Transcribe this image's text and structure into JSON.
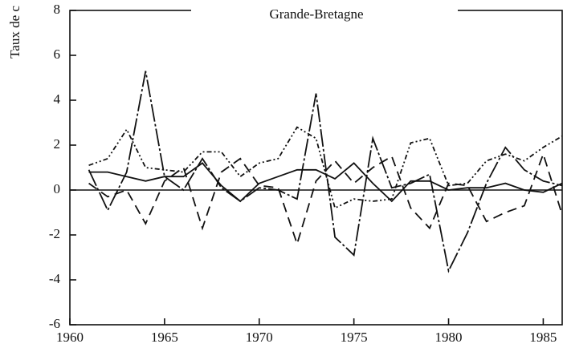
{
  "chart_data": {
    "type": "line",
    "title": "Grande-Bretagne",
    "y_label": "Taux de c",
    "x": [
      1961,
      1962,
      1963,
      1964,
      1965,
      1966,
      1967,
      1968,
      1969,
      1970,
      1971,
      1972,
      1973,
      1974,
      1975,
      1976,
      1977,
      1978,
      1979,
      1980,
      1981,
      1982,
      1983,
      1984,
      1985,
      1986
    ],
    "series": [
      {
        "color": "#111111",
        "dash": "solid",
        "values": [
          0.8,
          0.8,
          0.6,
          0.4,
          0.6,
          0.6,
          1.2,
          0.2,
          -0.5,
          0.3,
          0.6,
          0.9,
          0.9,
          0.5,
          1.2,
          0.3,
          -0.5,
          0.4,
          0.4,
          0.0,
          0.1,
          0.1,
          0.3,
          0.0,
          -0.1,
          0.3
        ]
      },
      {
        "color": "#111111",
        "dash": "longdash",
        "values": [
          0.9,
          -0.9,
          0.8,
          5.3,
          0.6,
          0.0,
          1.4,
          0.1,
          -0.5,
          0.1,
          0.0,
          -0.4,
          4.3,
          -2.1,
          -2.9,
          2.3,
          0.1,
          0.3,
          0.7,
          -3.6,
          -1.9,
          0.3,
          1.9,
          0.9,
          0.4,
          0.2
        ]
      },
      {
        "color": "#111111",
        "dash": "dashed",
        "values": [
          0.3,
          -0.3,
          0.0,
          -1.5,
          0.4,
          1.0,
          -1.7,
          0.8,
          1.4,
          0.2,
          0.1,
          -2.4,
          0.4,
          1.3,
          0.3,
          1.0,
          1.5,
          -0.8,
          -1.7,
          0.3,
          0.2,
          -1.4,
          -1.0,
          -0.7,
          1.6,
          -1.1
        ]
      },
      {
        "color": "#111111",
        "dash": "dashdot",
        "values": [
          1.1,
          1.4,
          2.7,
          1.0,
          0.9,
          0.8,
          1.7,
          1.7,
          0.6,
          1.2,
          1.4,
          2.8,
          2.3,
          -0.8,
          -0.4,
          -0.5,
          -0.4,
          2.1,
          2.3,
          0.2,
          0.3,
          1.3,
          1.6,
          1.3,
          1.9,
          2.4
        ]
      }
    ],
    "xlim": [
      1960,
      1986
    ],
    "xticks": [
      1960,
      1965,
      1970,
      1975,
      1980,
      1985
    ],
    "ylim": [
      -6,
      8
    ],
    "yticks": [
      -6,
      -4,
      -2,
      0,
      2,
      4,
      6,
      8
    ],
    "zero_line": true
  }
}
